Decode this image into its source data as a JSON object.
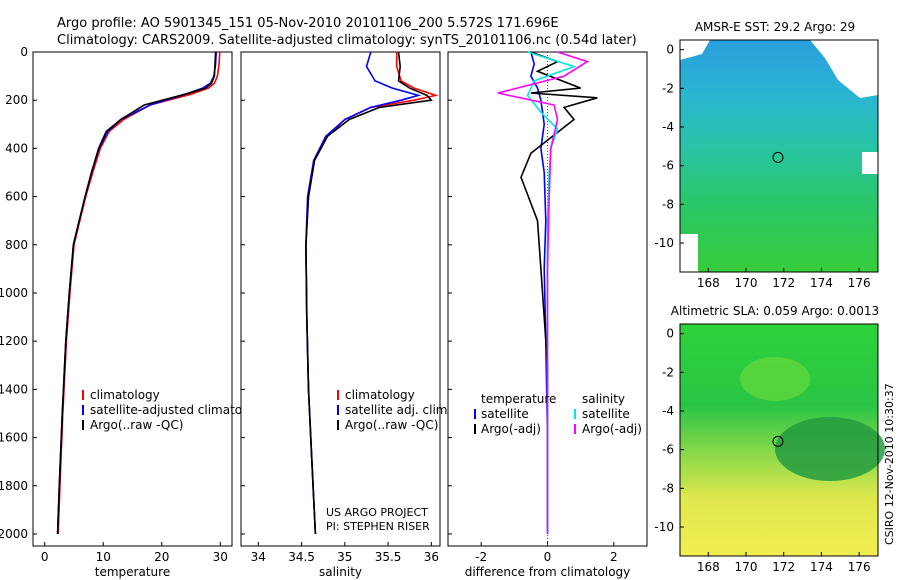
{
  "header": {
    "line1": "Argo profile: AO 5901345_151 05-Nov-2010 20101106_200 5.572S 171.696E",
    "line2": "Climatology: CARS2009. Satellite-adjusted climatology: synTS_20101106.nc (0.54d later)"
  },
  "chart_data": [
    {
      "type": "line",
      "name": "temperature-profile",
      "xlabel": "temperature",
      "ylabel": "",
      "xlim": [
        -2,
        32
      ],
      "ylim": [
        2050,
        0
      ],
      "xticks": [
        0,
        10,
        20,
        30
      ],
      "yticks": [
        0,
        200,
        400,
        600,
        800,
        1000,
        1200,
        1400,
        1600,
        1800,
        2000
      ],
      "legend": [
        "climatology",
        "satellite-adjusted climatology",
        "Argo(..raw -QC)"
      ],
      "series": [
        {
          "name": "climatology",
          "color": "#ff0000",
          "x": [
            29.9,
            29.8,
            29.5,
            29.0,
            28.0,
            25.0,
            18.0,
            13.5,
            11.0,
            9.5,
            8.2,
            7.0,
            6.0,
            5.0,
            4.3,
            3.7,
            3.1,
            2.6,
            2.3
          ],
          "y": [
            0,
            50,
            100,
            130,
            150,
            175,
            220,
            280,
            330,
            400,
            500,
            600,
            700,
            800,
            1000,
            1200,
            1500,
            1800,
            2000
          ]
        },
        {
          "name": "satellite-adjusted climatology",
          "color": "#0000ff",
          "x": [
            29.3,
            29.2,
            28.9,
            28.3,
            27.0,
            24.0,
            18.0,
            13.0,
            10.8,
            9.3,
            8.0,
            6.9,
            5.9,
            4.9,
            4.2,
            3.6,
            3.0,
            2.5,
            2.2
          ],
          "y": [
            0,
            50,
            100,
            130,
            150,
            175,
            220,
            280,
            330,
            400,
            500,
            600,
            700,
            800,
            1000,
            1200,
            1500,
            1800,
            2000
          ]
        },
        {
          "name": "Argo(..raw -QC)",
          "color": "#000000",
          "x": [
            29.2,
            29.1,
            29.0,
            28.5,
            27.5,
            24.0,
            17.0,
            13.0,
            10.5,
            9.2,
            8.0,
            6.9,
            5.9,
            4.9,
            4.2,
            3.6,
            3.0,
            2.5,
            2.2
          ],
          "y": [
            0,
            50,
            100,
            130,
            150,
            175,
            220,
            280,
            330,
            400,
            500,
            600,
            700,
            800,
            1000,
            1200,
            1500,
            1800,
            2000
          ]
        }
      ]
    },
    {
      "type": "line",
      "name": "salinity-profile",
      "xlabel": "salinity",
      "ylabel": "",
      "xlim": [
        33.8,
        36.1
      ],
      "ylim": [
        2050,
        0
      ],
      "xticks": [
        34,
        34.5,
        35,
        35.5,
        36
      ],
      "legend": [
        "climatology",
        "satellite adj. clim.",
        "Argo(..raw -QC)"
      ],
      "annotation": [
        "US ARGO PROJECT",
        "PI: STEPHEN RISER"
      ],
      "series": [
        {
          "name": "climatology",
          "color": "#ff0000",
          "x": [
            35.6,
            35.6,
            35.65,
            35.8,
            36.05,
            35.8,
            35.3,
            35.0,
            34.8,
            34.65,
            34.58,
            34.55,
            34.56,
            34.58,
            34.62,
            34.66
          ],
          "y": [
            0,
            60,
            120,
            150,
            180,
            200,
            230,
            280,
            350,
            450,
            600,
            800,
            1100,
            1400,
            1700,
            2000
          ]
        },
        {
          "name": "satellite adj. clim.",
          "color": "#0000ff",
          "x": [
            35.3,
            35.25,
            35.35,
            35.55,
            35.85,
            35.65,
            35.3,
            35.0,
            34.78,
            34.64,
            34.57,
            34.55,
            34.56,
            34.58,
            34.62,
            34.66
          ],
          "y": [
            0,
            60,
            120,
            150,
            180,
            200,
            230,
            280,
            350,
            450,
            600,
            800,
            1100,
            1400,
            1700,
            2000
          ]
        },
        {
          "name": "Argo(..raw -QC)",
          "color": "#000000",
          "x": [
            35.62,
            35.64,
            35.62,
            35.75,
            35.95,
            36.0,
            35.4,
            35.05,
            34.8,
            34.65,
            34.58,
            34.55,
            34.56,
            34.58,
            34.62,
            34.66
          ],
          "y": [
            0,
            60,
            120,
            150,
            180,
            200,
            230,
            280,
            350,
            450,
            600,
            800,
            1100,
            1400,
            1700,
            2000
          ]
        }
      ]
    },
    {
      "type": "line",
      "name": "difference-profile",
      "xlabel": "difference from climatology",
      "ylabel": "",
      "xlim": [
        -3,
        3
      ],
      "ylim": [
        2050,
        0
      ],
      "xticks": [
        -2,
        0,
        2
      ],
      "legend": [
        "temperature",
        "satellite",
        "Argo(-adj)",
        "salinity",
        "satellite",
        "Argo(-adj)"
      ],
      "series": [
        {
          "name": "temperature satellite",
          "color": "#0000ff",
          "x": [
            -0.5,
            -0.4,
            -0.5,
            -0.3,
            -0.2,
            -0.1,
            -0.2,
            -0.1,
            -0.05,
            -0.1,
            -0.05,
            0,
            0
          ],
          "y": [
            0,
            50,
            100,
            150,
            200,
            300,
            400,
            500,
            700,
            900,
            1200,
            1600,
            2000
          ]
        },
        {
          "name": "temperature Argo(-adj)",
          "color": "#000000",
          "x": [
            -0.5,
            0.3,
            -0.3,
            1.0,
            -0.5,
            1.5,
            0.5,
            0.8,
            -0.5,
            -0.8,
            -0.3,
            -0.2,
            0,
            0
          ],
          "y": [
            0,
            40,
            80,
            150,
            170,
            190,
            230,
            280,
            420,
            520,
            700,
            900,
            1300,
            2000
          ]
        },
        {
          "name": "salinity satellite",
          "color": "#00e5e5",
          "x": [
            -0.6,
            0.8,
            -0.4,
            -0.6,
            -0.2,
            0.3,
            0.1,
            0.05,
            0,
            0,
            0,
            0
          ],
          "y": [
            0,
            60,
            120,
            180,
            250,
            320,
            400,
            500,
            700,
            1000,
            1400,
            2000
          ]
        },
        {
          "name": "salinity Argo(-adj)",
          "color": "#ff00ff",
          "x": [
            0.3,
            1.2,
            0.5,
            -1.5,
            0.2,
            0.3,
            0.1,
            0.05,
            0,
            0,
            0
          ],
          "y": [
            0,
            40,
            100,
            170,
            220,
            280,
            400,
            600,
            900,
            1400,
            2000
          ]
        }
      ]
    },
    {
      "type": "heatmap",
      "name": "sst-map",
      "title": "AMSR-E SST: 29.2  Argo: 29",
      "xlim": [
        166.5,
        177
      ],
      "ylim": [
        -11.5,
        0.5
      ],
      "xticks": [
        168,
        170,
        172,
        174,
        176
      ],
      "yticks": [
        0,
        -2,
        -4,
        -6,
        -8,
        -10
      ],
      "marker": {
        "lon": 171.696,
        "lat": -5.572
      }
    },
    {
      "type": "heatmap",
      "name": "sla-map",
      "title": "Altimetric SLA: 0.059  Argo: 0.0013",
      "xlim": [
        166.5,
        177
      ],
      "ylim": [
        -11.5,
        0.5
      ],
      "xticks": [
        168,
        170,
        172,
        174,
        176
      ],
      "yticks": [
        0,
        -2,
        -4,
        -6,
        -8,
        -10
      ],
      "marker": {
        "lon": 171.696,
        "lat": -5.572
      }
    }
  ],
  "footer": {
    "credit": "CSIRO 12-Nov-2010 10:30:37"
  }
}
